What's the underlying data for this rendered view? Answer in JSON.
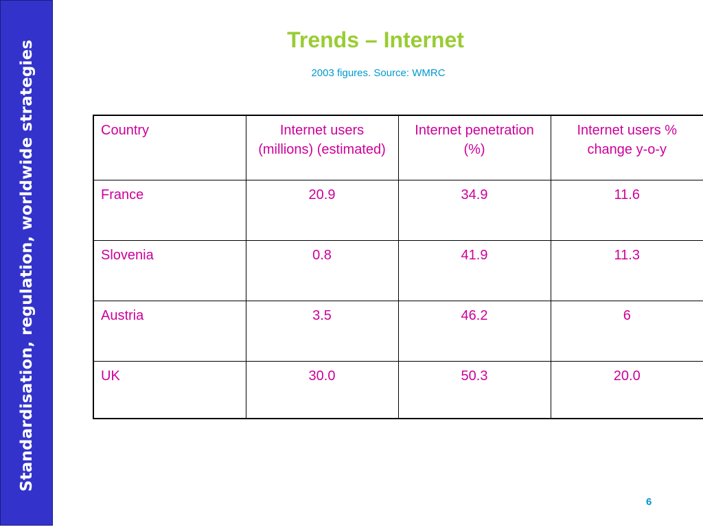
{
  "sidebar": {
    "text": "Standardisation, regulation, worldwide strategies"
  },
  "header": {
    "title": "Trends – Internet",
    "subtitle": "2003 figures. Source: WMRC"
  },
  "table": {
    "headers": [
      "Country",
      "Internet users (millions) (estimated)",
      "Internet penetration (%)",
      "Internet users % change y-o-y"
    ],
    "rows": [
      [
        "France",
        "20.9",
        "34.9",
        "11.6"
      ],
      [
        "Slovenia",
        "0.8",
        "41.9",
        "11.3"
      ],
      [
        "Austria",
        "3.5",
        "46.2",
        "6"
      ],
      [
        "UK",
        "30.0",
        "50.3",
        "20.0"
      ]
    ]
  },
  "footer": {
    "page_number": "6"
  },
  "colors": {
    "sidebar_bg": "#3333cc",
    "title": "#99cc33",
    "subtitle": "#0099cc",
    "table_text": "#cc0099"
  }
}
